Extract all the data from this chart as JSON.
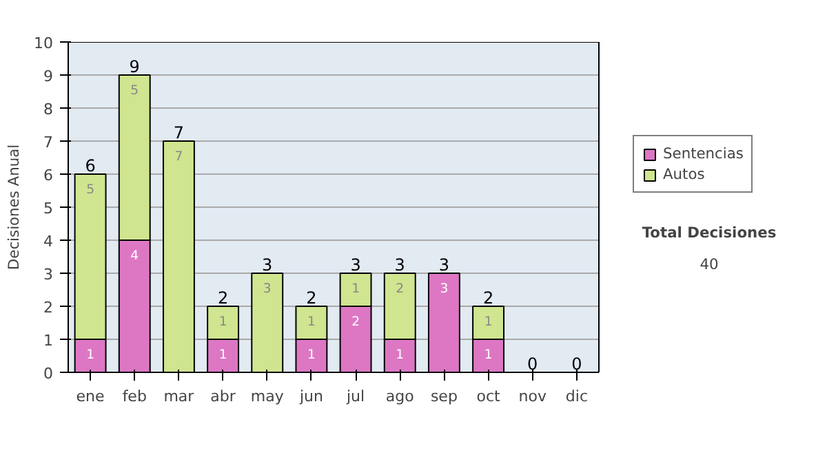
{
  "chart_data": {
    "type": "bar",
    "stacked": true,
    "ylabel": "Decisiones Anual",
    "categories": [
      "ene",
      "feb",
      "mar",
      "abr",
      "may",
      "jun",
      "jul",
      "ago",
      "sep",
      "oct",
      "nov",
      "dic"
    ],
    "series": [
      {
        "name": "Sentencias",
        "color": "#dd77c4",
        "values": [
          1,
          4,
          0,
          1,
          0,
          1,
          2,
          1,
          3,
          1,
          0,
          0
        ],
        "value_labels": [
          "1",
          "4",
          null,
          "1",
          null,
          "1",
          "2",
          "1",
          "3",
          "1",
          null,
          null
        ]
      },
      {
        "name": "Autos",
        "color": "#cfe58f",
        "values": [
          5,
          5,
          7,
          1,
          3,
          1,
          1,
          2,
          0,
          1,
          0,
          0
        ],
        "value_labels": [
          "5",
          "5",
          "7",
          "1",
          "3",
          "1",
          "1",
          "2",
          null,
          "1",
          null,
          null
        ]
      }
    ],
    "totals": [
      "6",
      "9",
      "7",
      "2",
      "3",
      "2",
      "3",
      "3",
      "3",
      "2",
      "0",
      "0"
    ],
    "ylim": [
      0,
      10
    ],
    "yticks": [
      0,
      1,
      2,
      3,
      4,
      5,
      6,
      7,
      8,
      9,
      10
    ],
    "grid": "y",
    "legend": "right",
    "annotations": [
      "Total Decisiones",
      "40"
    ]
  }
}
